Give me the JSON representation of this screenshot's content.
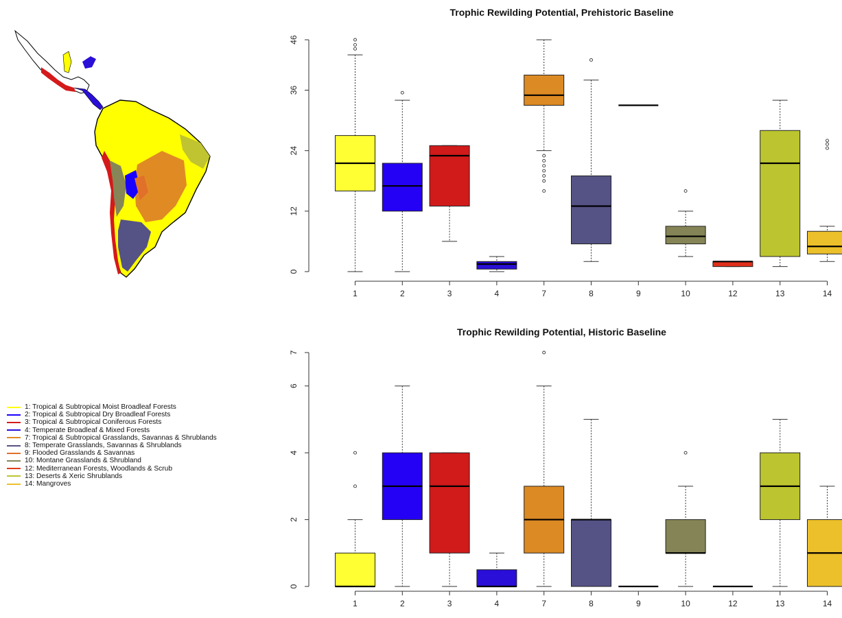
{
  "legend": {
    "items": [
      {
        "label": "1: Tropical & Subtropical Moist Broadleaf Forests",
        "color": "#ffff00"
      },
      {
        "label": "2: Tropical & Subtropical Dry Broadleaf Forests",
        "color": "#1a00ff"
      },
      {
        "label": "3: Tropical & Subtropical Coniferous Forests",
        "color": "#d41a1a"
      },
      {
        "label": "4: Temperate Broadleaf & Mixed Forests",
        "color": "#2a0fd8"
      },
      {
        "label": "7: Tropical & Subtropical Grasslands, Savannas & Shrublands",
        "color": "#e08a24"
      },
      {
        "label": "8: Temperate Grasslands, Savannas & Shrublands",
        "color": "#555285"
      },
      {
        "label": "9: Flooded Grasslands & Savannas",
        "color": "#e0702a"
      },
      {
        "label": "10: Montane Grasslands & Shrubland",
        "color": "#858558"
      },
      {
        "label": "12: Mediterranean Forests, Woodlands & Scrub",
        "color": "#e03a1a"
      },
      {
        "label": "13:  Deserts & Xeric Shrublands",
        "color": "#bfc430"
      },
      {
        "label": "14: Mangroves",
        "color": "#ecc02a"
      }
    ]
  },
  "map": {
    "colors": {
      "land": "#ffff00",
      "savanna": "#e08a24",
      "temperate": "#555285",
      "dry": "#1a00ff",
      "conifer": "#d41a1a",
      "montane": "#858558",
      "desert": "#bfc430",
      "flooded": "#e0702a",
      "mangrove": "#ecc02a",
      "outline": "#000000"
    }
  },
  "chart_data": [
    {
      "type": "boxplot",
      "title": "Trophic Rewilding Potential, Prehistoric Baseline",
      "xlabel": "",
      "ylabel": "",
      "categories": [
        "1",
        "2",
        "3",
        "4",
        "7",
        "8",
        "9",
        "10",
        "12",
        "13",
        "14"
      ],
      "yticks": [
        "0",
        "12",
        "24",
        "36",
        "46"
      ],
      "ylim": [
        0,
        46
      ],
      "colors": [
        "#ffff33",
        "#2400f5",
        "#d11a1a",
        "#2a0fd8",
        "#dc8a24",
        "#555285",
        "#222222",
        "#848457",
        "#e0301a",
        "#bcc52f",
        "#ecc02a"
      ],
      "boxes": [
        {
          "min": 0,
          "q1": 16,
          "median": 21.5,
          "q3": 27,
          "max": 43,
          "outliers": [
            44.2,
            45,
            46
          ]
        },
        {
          "min": 0,
          "q1": 12,
          "median": 17,
          "q3": 21.5,
          "max": 34,
          "outliers": [
            35.5
          ]
        },
        {
          "min": 6,
          "q1": 13,
          "median": 23,
          "q3": 25,
          "max": 25,
          "outliers": []
        },
        {
          "min": 0,
          "q1": 0.5,
          "median": 1.5,
          "q3": 2,
          "max": 3,
          "outliers": []
        },
        {
          "min": 24,
          "q1": 33,
          "median": 35,
          "q3": 39,
          "max": 46,
          "outliers": [
            16,
            18,
            19,
            20,
            21,
            22,
            23
          ]
        },
        {
          "min": 2,
          "q1": 5.5,
          "median": 13,
          "q3": 19,
          "max": 38,
          "outliers": [
            42
          ]
        },
        {
          "min": 33,
          "q1": 33,
          "median": 33,
          "q3": 33,
          "max": 33,
          "outliers": []
        },
        {
          "min": 3,
          "q1": 5.5,
          "median": 7,
          "q3": 9,
          "max": 12,
          "outliers": [
            16
          ]
        },
        {
          "min": 1,
          "q1": 1,
          "median": 2,
          "q3": 2,
          "max": 2,
          "outliers": []
        },
        {
          "min": 1,
          "q1": 3,
          "median": 21.5,
          "q3": 28,
          "max": 34,
          "outliers": []
        },
        {
          "min": 2,
          "q1": 3.5,
          "median": 5,
          "q3": 8,
          "max": 9,
          "outliers": [
            24.5,
            25.3,
            26
          ]
        }
      ]
    },
    {
      "type": "boxplot",
      "title": "Trophic Rewilding Potential, Historic Baseline",
      "xlabel": "",
      "ylabel": "",
      "categories": [
        "1",
        "2",
        "3",
        "4",
        "7",
        "8",
        "9",
        "10",
        "12",
        "13",
        "14"
      ],
      "yticks": [
        "0",
        "2",
        "4",
        "6",
        "7"
      ],
      "ylim": [
        0,
        7
      ],
      "colors": [
        "#ffff33",
        "#2400f5",
        "#d11a1a",
        "#2a0fd8",
        "#dc8a24",
        "#555285",
        "#222222",
        "#848457",
        "#e0301a",
        "#bcc52f",
        "#ecc02a"
      ],
      "boxes": [
        {
          "min": 0,
          "q1": 0,
          "median": 0,
          "q3": 1,
          "max": 2,
          "outliers": [
            3,
            4
          ]
        },
        {
          "min": 0,
          "q1": 2,
          "median": 3,
          "q3": 4,
          "max": 6,
          "outliers": []
        },
        {
          "min": 0,
          "q1": 1,
          "median": 3,
          "q3": 4,
          "max": 4,
          "outliers": []
        },
        {
          "min": 0,
          "q1": 0,
          "median": 0,
          "q3": 0.5,
          "max": 1,
          "outliers": []
        },
        {
          "min": 0,
          "q1": 1,
          "median": 2,
          "q3": 3,
          "max": 6,
          "outliers": [
            7
          ]
        },
        {
          "min": 0,
          "q1": 0,
          "median": 2,
          "q3": 2,
          "max": 5,
          "outliers": []
        },
        {
          "min": 0,
          "q1": 0,
          "median": 0,
          "q3": 0,
          "max": 0,
          "outliers": []
        },
        {
          "min": 0,
          "q1": 1,
          "median": 1,
          "q3": 2,
          "max": 3,
          "outliers": [
            4
          ]
        },
        {
          "min": 0,
          "q1": 0,
          "median": 0,
          "q3": 0,
          "max": 0,
          "outliers": []
        },
        {
          "min": 0,
          "q1": 2,
          "median": 3,
          "q3": 4,
          "max": 5,
          "outliers": []
        },
        {
          "min": 0,
          "q1": 0,
          "median": 1,
          "q3": 2,
          "max": 3,
          "outliers": []
        }
      ]
    }
  ]
}
